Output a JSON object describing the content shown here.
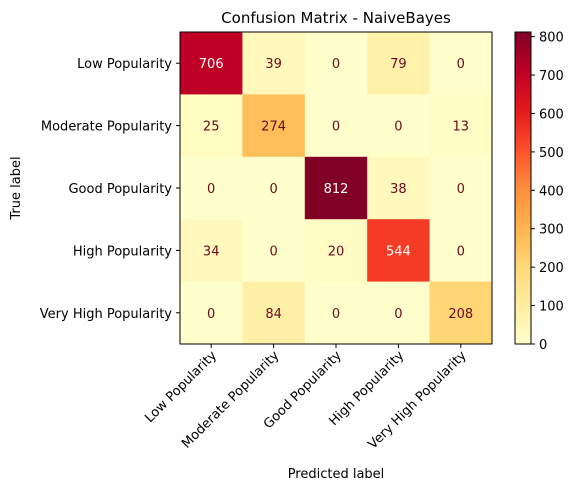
{
  "chart_data": {
    "type": "heatmap",
    "title": "Confusion Matrix - NaiveBayes",
    "xlabel": "Predicted label",
    "ylabel": "True label",
    "categories": [
      "Low Popularity",
      "Moderate Popularity",
      "Good Popularity",
      "High Popularity",
      "Very High Popularity"
    ],
    "matrix": [
      [
        706,
        39,
        0,
        79,
        0
      ],
      [
        25,
        274,
        0,
        0,
        13
      ],
      [
        0,
        0,
        812,
        38,
        0
      ],
      [
        34,
        0,
        20,
        544,
        0
      ],
      [
        0,
        84,
        0,
        0,
        208
      ]
    ],
    "colormap": "YlOrRd",
    "colorbar": {
      "range": [
        0,
        812
      ],
      "ticks": [
        0,
        100,
        200,
        300,
        400,
        500,
        600,
        700,
        800
      ]
    }
  }
}
